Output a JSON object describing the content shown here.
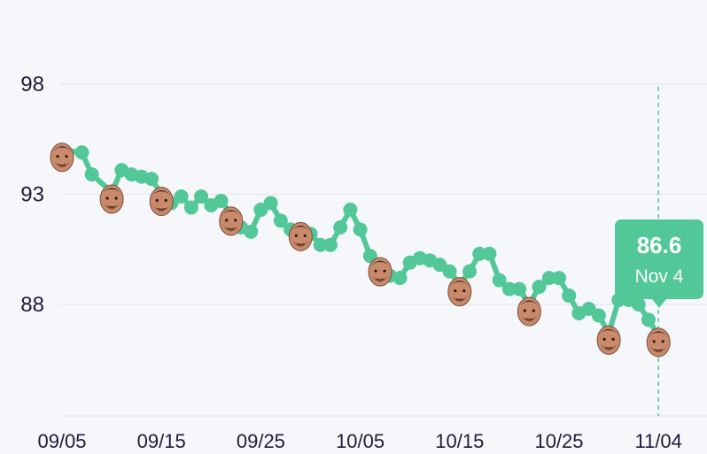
{
  "colors": {
    "background": "#f6f7fb",
    "line": "#52c798",
    "grid": "#e3e5ee",
    "axis_text": "#1f1b3a",
    "tooltip_bg": "#52c798",
    "marker_face": "#c98a6c"
  },
  "tooltip": {
    "value": "86.6",
    "date": "Nov 4"
  },
  "chart_data": {
    "type": "line",
    "title": "",
    "xlabel": "",
    "ylabel": "",
    "ylim": [
      83,
      98
    ],
    "y_ticks": [
      "98",
      "93",
      "88"
    ],
    "x_ticks": [
      "09/05",
      "09/15",
      "09/25",
      "10/05",
      "10/15",
      "10/25",
      "11/04"
    ],
    "grid": true,
    "marker": "face-photo",
    "series": [
      {
        "x": [
          "09/05",
          "09/07",
          "09/08",
          "09/10",
          "09/11",
          "09/12",
          "09/13",
          "09/14",
          "09/15",
          "09/16",
          "09/17",
          "09/18",
          "09/19",
          "09/20",
          "09/21",
          "09/22",
          "09/23",
          "09/24",
          "09/25",
          "09/26",
          "09/27",
          "09/28",
          "09/29",
          "09/30",
          "10/01",
          "10/02",
          "10/03",
          "10/04",
          "10/05",
          "10/06",
          "10/07",
          "10/08",
          "10/09",
          "10/10",
          "10/11",
          "10/12",
          "10/13",
          "10/14",
          "10/15",
          "10/16",
          "10/17",
          "10/18",
          "10/19",
          "10/20",
          "10/21",
          "10/22",
          "10/23",
          "10/24",
          "10/25",
          "10/26",
          "10/27",
          "10/28",
          "10/29",
          "10/30",
          "10/31",
          "11/01",
          "11/02",
          "11/03",
          "11/04"
        ],
        "y": [
          95.0,
          94.9,
          93.9,
          93.1,
          94.1,
          93.9,
          93.8,
          93.7,
          93.0,
          92.6,
          92.9,
          92.4,
          92.9,
          92.5,
          92.7,
          92.1,
          91.5,
          91.3,
          92.3,
          92.6,
          91.8,
          91.4,
          91.4,
          91.2,
          90.7,
          90.7,
          91.5,
          92.3,
          91.4,
          90.2,
          89.8,
          89.3,
          89.2,
          89.9,
          90.1,
          90.0,
          89.8,
          89.5,
          88.9,
          89.5,
          90.3,
          90.3,
          89.1,
          88.7,
          88.7,
          88.0,
          88.8,
          89.2,
          89.2,
          88.4,
          87.6,
          87.8,
          87.5,
          86.7,
          88.2,
          88.2,
          88.0,
          87.3,
          86.6
        ]
      }
    ]
  }
}
